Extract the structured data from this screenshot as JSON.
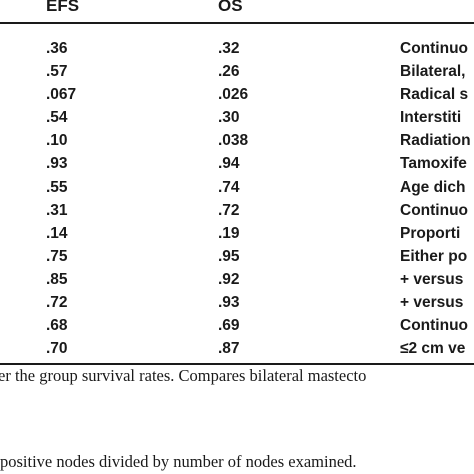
{
  "table": {
    "columns": [
      "EFS",
      "OS",
      ""
    ],
    "rows": [
      {
        "efs": ".36",
        "os": ".32",
        "variable": "Continuo"
      },
      {
        "efs": ".57",
        "os": ".26",
        "variable": "Bilateral,"
      },
      {
        "efs": ".067",
        "os": ".026",
        "variable": "Radical s"
      },
      {
        "efs": ".54",
        "os": ".30",
        "variable": "Interstiti"
      },
      {
        "efs": ".10",
        "os": ".038",
        "variable": "Radiation"
      },
      {
        "efs": ".93",
        "os": ".94",
        "variable": "Tamoxife"
      },
      {
        "efs": ".55",
        "os": ".74",
        "variable": "Age dich"
      },
      {
        "efs": ".31",
        "os": ".72",
        "variable": "Continuo"
      },
      {
        "efs": ".14",
        "os": ".19",
        "variable": "Proporti"
      },
      {
        "efs": ".75",
        "os": ".95",
        "variable": "Either po"
      },
      {
        "efs": ".85",
        "os": ".92",
        "variable": "+ versus"
      },
      {
        "efs": ".72",
        "os": ".93",
        "variable": "+ versus"
      },
      {
        "efs": ".68",
        "os": ".69",
        "variable": "Continuo"
      },
      {
        "efs": ".70",
        "os": ".87",
        "variable": "≤2 cm ve"
      }
    ]
  },
  "footnotes": [
    "er the group survival rates. Compares bilateral mastecto",
    "positive nodes divided by number of nodes examined."
  ]
}
